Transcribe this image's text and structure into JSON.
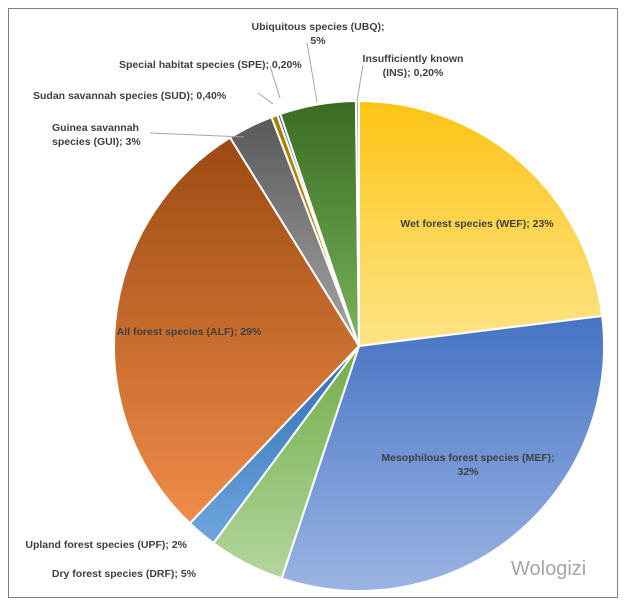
{
  "chart_data": {
    "type": "pie",
    "title": "",
    "watermark": "Wologizi",
    "start_angle_deg": 0,
    "direction": "clockwise",
    "slices": [
      {
        "key": "wef",
        "label_lines": [
          "Wet forest species (WEF); 23%"
        ],
        "value": 23,
        "color_top": "#fdc414",
        "color_bottom": "#fde487"
      },
      {
        "key": "mef",
        "label_lines": [
          "Mesophilous forest species (MEF);",
          "32%"
        ],
        "value": 32,
        "color_top": "#4673c4",
        "color_bottom": "#9ab4e2"
      },
      {
        "key": "drf",
        "label_lines": [
          "Dry forest species (DRF); 5%"
        ],
        "value": 5,
        "color_top": "#70ad47",
        "color_bottom": "#b3d69e"
      },
      {
        "key": "upf",
        "label_lines": [
          "Upland forest species (UPF); 2%"
        ],
        "value": 2,
        "color_top": "#2e6db4",
        "color_bottom": "#6fa6dd"
      },
      {
        "key": "alf",
        "label_lines": [
          "All forest species (ALF); 29%"
        ],
        "value": 29,
        "color_top": "#9c4a12",
        "color_bottom": "#f08c4a"
      },
      {
        "key": "gui",
        "label_lines": [
          "Guinea savannah",
          "species (GUI); 3%"
        ],
        "value": 3,
        "color_top": "#595959",
        "color_bottom": "#a6a6a6"
      },
      {
        "key": "sud",
        "label_lines": [
          "Sudan savannah species (SUD); 0,40%"
        ],
        "value": 0.4,
        "color_top": "#a67c00",
        "color_bottom": "#c89a10"
      },
      {
        "key": "spe",
        "label_lines": [
          "Special habitat species (SPE); 0,20%"
        ],
        "value": 0.2,
        "color_top": "#2f5597",
        "color_bottom": "#4a74c0"
      },
      {
        "key": "ubq",
        "label_lines": [
          "Ubiquitous species (UBQ);",
          "5%"
        ],
        "value": 5,
        "color_top": "#3a6b22",
        "color_bottom": "#7ab35a"
      },
      {
        "key": "ins",
        "label_lines": [
          "Insufficiently known",
          "(INS); 0,20%"
        ],
        "value": 0.2,
        "color_top": "#a0a0a0",
        "color_bottom": "#d0d0d0"
      }
    ]
  }
}
